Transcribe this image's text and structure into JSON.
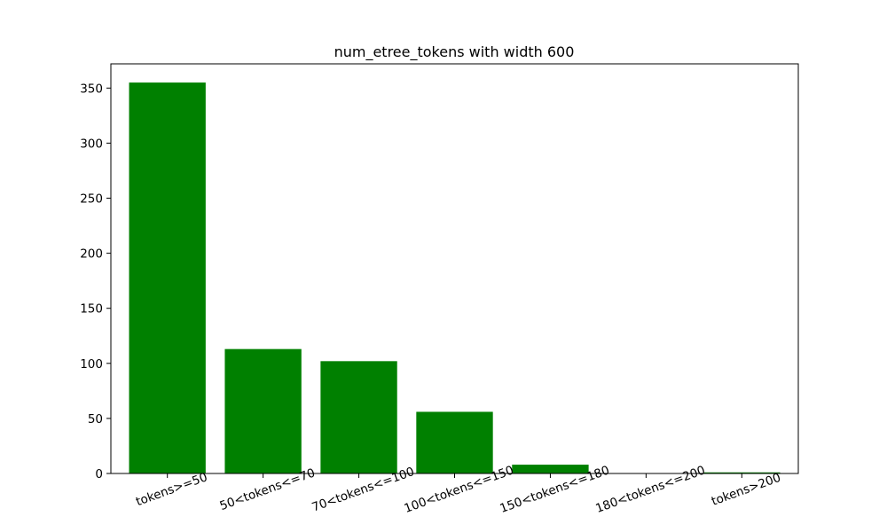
{
  "chart_data": {
    "type": "bar",
    "title": "num_etree_tokens with width 600",
    "xlabel": "",
    "ylabel": "",
    "categories": [
      "tokens>=50",
      "50<tokens<=70",
      "70<tokens<=100",
      "100<tokens<=150",
      "150<tokens<=180",
      "180<tokens<=200",
      "tokens>200"
    ],
    "values": [
      355,
      113,
      102,
      56,
      8,
      0,
      1
    ],
    "ylim": [
      0,
      372
    ],
    "yticks": [
      0,
      50,
      100,
      150,
      200,
      250,
      300,
      350
    ],
    "grid": false,
    "legend": "none",
    "bar_color": "#008000",
    "x_tick_rotation_deg": 20
  }
}
